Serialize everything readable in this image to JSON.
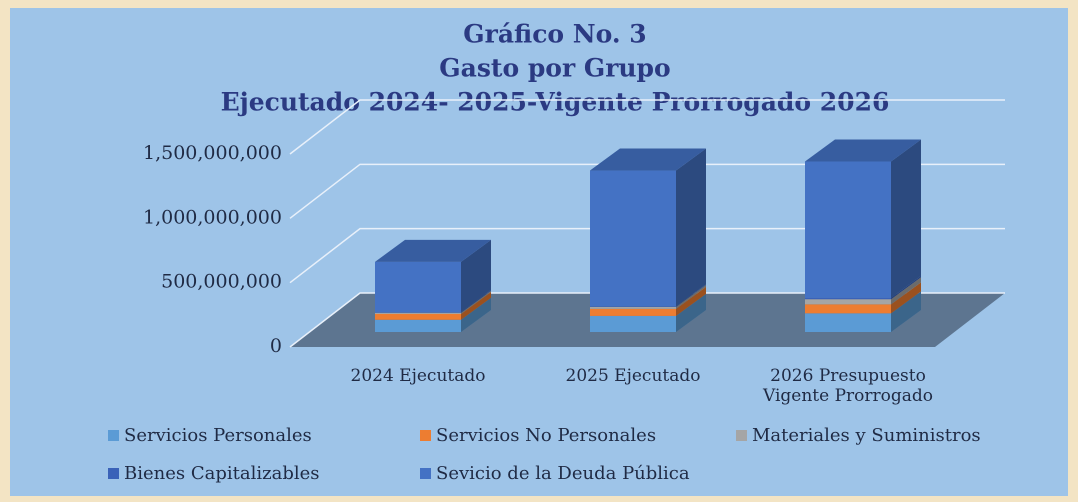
{
  "chart_data": {
    "type": "bar3d_stacked",
    "title": [
      "Gráfico No. 3",
      "Gasto por Grupo",
      "Ejecutado 2024- 2025-Vigente Prorrogado 2026"
    ],
    "categories": [
      "2024 Ejecutado",
      "2025 Ejecutado",
      "2026 Presupuesto Vigente Prorrogado"
    ],
    "series": [
      {
        "name": "Servicios Personales",
        "color": "#5b9bd5",
        "values": [
          95000000,
          125000000,
          145000000
        ]
      },
      {
        "name": "Servicios No Personales",
        "color": "#ed7d31",
        "values": [
          45000000,
          55000000,
          70000000
        ]
      },
      {
        "name": "Materiales y Suministros",
        "color": "#a5a5a5",
        "values": [
          10000000,
          15000000,
          40000000
        ]
      },
      {
        "name": "Bienes Capitalizables",
        "color": "#3a62b8",
        "values": [
          5000000,
          5000000,
          10000000
        ]
      },
      {
        "name": "Sevicio de la Deuda Pública",
        "color": "#4472c4",
        "values": [
          390000000,
          1055000000,
          1060000000
        ]
      }
    ],
    "ylim": [
      0,
      1500000000
    ],
    "yticks": [
      0,
      {
        "value": 500000000,
        "label": "500,000,000"
      },
      {
        "value": 1000000000,
        "label": "1,000,000,000"
      },
      {
        "value": 1500000000,
        "label": "1,500,000,000"
      }
    ],
    "grid": true
  }
}
